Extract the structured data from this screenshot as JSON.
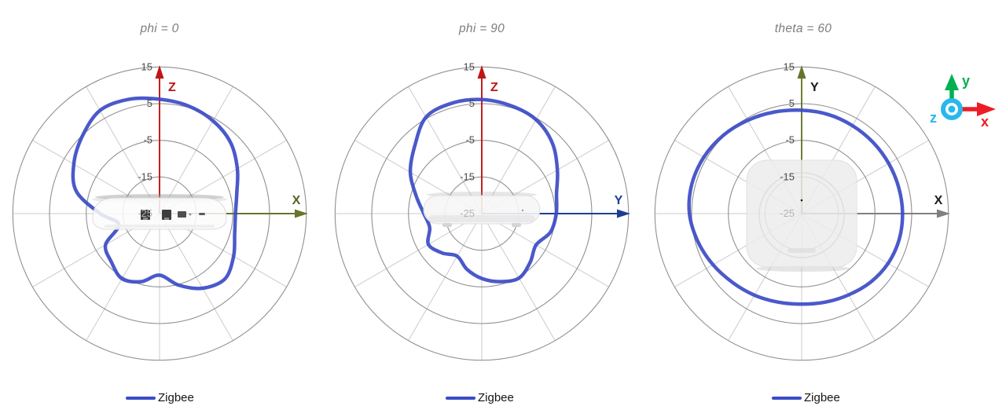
{
  "page": {
    "background": "#ffffff"
  },
  "panels": [
    {
      "title": "phi = 0",
      "vertical_axis": {
        "label": "Z",
        "color": "#c01515",
        "label_color": "#c01515"
      },
      "horizontal_axis": {
        "label": "X",
        "color": "#66752c",
        "label_color": "#55641f"
      },
      "legend": {
        "label": "Zigbee"
      },
      "device": "access-point-side-view-ports"
    },
    {
      "title": "phi = 90",
      "vertical_axis": {
        "label": "Z",
        "color": "#c01515",
        "label_color": "#c01515"
      },
      "horizontal_axis": {
        "label": "Y",
        "color": "#1d3e94",
        "label_color": "#1d3e94"
      },
      "legend": {
        "label": "Zigbee"
      },
      "device": "access-point-side-view"
    },
    {
      "title": "theta = 60",
      "vertical_axis": {
        "label": "Y",
        "color": "#66752c",
        "label_color": "#1a1a1a"
      },
      "horizontal_axis": {
        "label": "X",
        "color": "#808080",
        "label_color": "#1a1a1a"
      },
      "legend": {
        "label": "Zigbee"
      },
      "device": "access-point-top-view"
    }
  ],
  "coordinate_badge": {
    "axes": [
      {
        "label": "y",
        "color": "#00b050"
      },
      {
        "label": "x",
        "color": "#ee1c25"
      },
      {
        "label": "z",
        "color": "#29b8ec"
      }
    ]
  },
  "chart_data": [
    {
      "type": "polar-line",
      "title": "phi = 0",
      "r_axis": {
        "ticks": [
          15,
          5,
          -5,
          -15,
          -25
        ],
        "min": -25,
        "max": 15
      },
      "angle_grid_step_deg": 30,
      "orientation": "0 deg points up along vertical axis, angles increase clockwise",
      "legend": {
        "position": "bottom",
        "entries": [
          "Zigbee"
        ]
      },
      "series": [
        {
          "name": "Zigbee",
          "color": "#3b4bc6",
          "angles_deg": [
            0,
            15,
            30,
            45,
            60,
            75,
            90,
            105,
            120,
            135,
            150,
            165,
            180,
            195,
            210,
            225,
            240,
            255,
            270,
            285,
            300,
            315,
            330,
            345
          ],
          "values_db": [
            6.2,
            5.4,
            4.2,
            2.4,
            -0.5,
            -3.2,
            -4.3,
            -3.8,
            -1.7,
            0.2,
            -1.5,
            -4.8,
            -8.2,
            -5.8,
            -4.5,
            -6.4,
            -8.0,
            -13.5,
            -8.8,
            -1.5,
            2.0,
            4.8,
            7.5,
            7.3
          ]
        }
      ]
    },
    {
      "type": "polar-line",
      "title": "phi = 90",
      "r_axis": {
        "ticks": [
          15,
          5,
          -5,
          -15,
          -25
        ],
        "min": -25,
        "max": 15
      },
      "angle_grid_step_deg": 30,
      "orientation": "0 deg points up along vertical axis, angles increase clockwise",
      "legend": {
        "position": "bottom",
        "entries": [
          "Zigbee"
        ]
      },
      "series": [
        {
          "name": "Zigbee",
          "color": "#3b4bc6",
          "angles_deg": [
            0,
            15,
            30,
            45,
            60,
            75,
            90,
            105,
            120,
            135,
            150,
            165,
            180,
            195,
            210,
            225,
            240,
            255,
            270,
            285,
            300,
            315,
            330,
            345
          ],
          "values_db": [
            6.1,
            5.5,
            4.6,
            2.2,
            -1.2,
            -3.9,
            -4.7,
            -5.6,
            -7.9,
            -6.3,
            -4.7,
            -5.8,
            -7.3,
            -9.3,
            -11.6,
            -9.8,
            -8.2,
            -10.3,
            -9.2,
            -6.5,
            -2.5,
            0.9,
            5.4,
            6.2
          ]
        }
      ]
    },
    {
      "type": "polar-line",
      "title": "theta = 60",
      "r_axis": {
        "ticks": [
          15,
          5,
          -5,
          -15,
          -25
        ],
        "min": -25,
        "max": 15
      },
      "angle_grid_step_deg": 30,
      "orientation": "0 deg points up along vertical axis, angles increase clockwise",
      "legend": {
        "position": "bottom",
        "entries": [
          "Zigbee"
        ]
      },
      "series": [
        {
          "name": "Zigbee",
          "color": "#3b4bc6",
          "angles_deg": [
            0,
            15,
            30,
            45,
            60,
            75,
            90,
            105,
            120,
            135,
            150,
            165,
            180,
            195,
            210,
            225,
            240,
            255,
            270,
            285,
            300,
            315,
            330,
            345
          ],
          "values_db": [
            3.2,
            3.0,
            2.7,
            2.5,
            2.4,
            2.4,
            2.5,
            2.5,
            2.2,
            1.5,
            0.6,
            0.0,
            -0.3,
            0.0,
            0.7,
            1.6,
            2.9,
            4.3,
            5.6,
            6.0,
            5.8,
            5.2,
            4.4,
            3.7
          ]
        }
      ]
    }
  ]
}
